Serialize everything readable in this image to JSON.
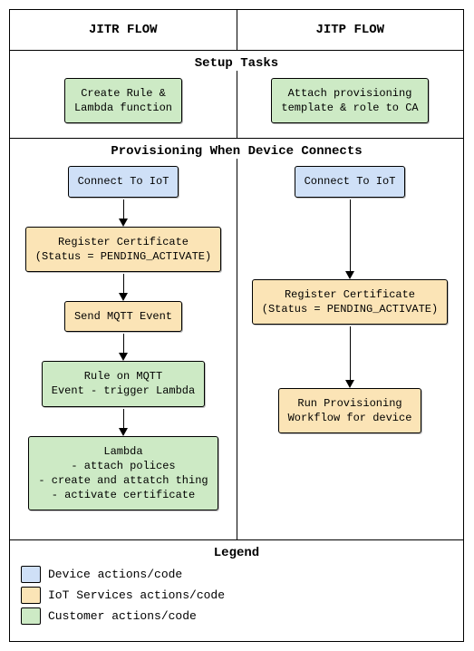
{
  "colors": {
    "device": "#cfe0f7",
    "iot": "#fbe4b6",
    "customer": "#cdeac5",
    "border": "#000000"
  },
  "header": {
    "left": "JITR FLOW",
    "right": "JITP FLOW"
  },
  "setup": {
    "title": "Setup Tasks",
    "left": {
      "text": "Create Rule &\nLambda function",
      "color": "customer"
    },
    "right": {
      "text": "Attach provisioning\ntemplate & role to CA",
      "color": "customer"
    }
  },
  "provisioning": {
    "title": "Provisioning When Device Connects",
    "left": [
      {
        "text": "Connect To IoT",
        "color": "device",
        "arrow": 22
      },
      {
        "text": "Register Certificate\n(Status = PENDING_ACTIVATE)",
        "color": "iot",
        "arrow": 22
      },
      {
        "text": "Send MQTT Event",
        "color": "iot",
        "arrow": 22
      },
      {
        "text": "Rule on MQTT\nEvent - trigger Lambda",
        "color": "customer",
        "arrow": 22
      },
      {
        "text": "Lambda\n- attach polices\n- create and attatch thing\n- activate certificate",
        "color": "customer",
        "arrow": 0
      }
    ],
    "right": [
      {
        "text": "Connect To IoT",
        "color": "device",
        "arrow": 80
      },
      {
        "text": "Register Certificate\n(Status = PENDING_ACTIVATE)",
        "color": "iot",
        "arrow": 60
      },
      {
        "text": "Run Provisioning\nWorkflow for device",
        "color": "iot",
        "arrow": 0
      }
    ]
  },
  "legend": {
    "title": "Legend",
    "items": [
      {
        "label": "Device actions/code",
        "color": "device"
      },
      {
        "label": "IoT Services actions/code",
        "color": "iot"
      },
      {
        "label": "Customer actions/code",
        "color": "customer"
      }
    ]
  }
}
